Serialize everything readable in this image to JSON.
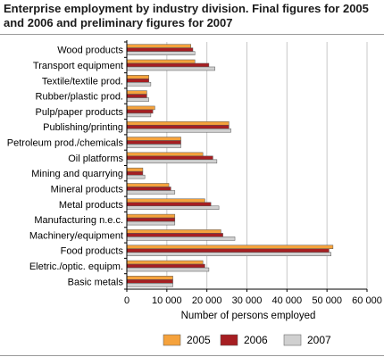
{
  "title": "Enterprise employment by industry division. Final figures for 2005 and 2006 and preliminary figures for 2007",
  "chart_data": {
    "type": "bar",
    "orientation": "horizontal",
    "categories": [
      "Wood products",
      "Transport equipment",
      "Textile/textile prod.",
      "Rubber/plastic prod.",
      "Pulp/paper products",
      "Publishing/printing",
      "Petroleum prod./chemicals",
      "Oil platforms",
      "Mining and quarrying",
      "Mineral products",
      "Metal products",
      "Manufacturing n.e.c.",
      "Machinery/equipment",
      "Food products",
      "Eletric./optic. equipm.",
      "Basic metals"
    ],
    "series": [
      {
        "name": "2005",
        "color": "#f5a23c",
        "values": [
          16000,
          17000,
          5500,
          5000,
          7000,
          25500,
          13500,
          19000,
          4000,
          10500,
          19500,
          12000,
          23500,
          51500,
          19000,
          11500
        ]
      },
      {
        "name": "2006",
        "color": "#a61e22",
        "values": [
          16500,
          20500,
          5500,
          5000,
          6500,
          25500,
          13500,
          21500,
          4000,
          11000,
          21000,
          12000,
          24000,
          50500,
          19500,
          11500
        ]
      },
      {
        "name": "2007",
        "color": "#d0d0d0",
        "values": [
          17000,
          22000,
          6000,
          5500,
          6000,
          26000,
          13500,
          22500,
          4500,
          12000,
          23000,
          12000,
          27000,
          51000,
          20500,
          11500
        ]
      }
    ],
    "xlabel": "Number of persons employed",
    "ylabel": "",
    "xlim": [
      0,
      60000
    ],
    "xticks": [
      0,
      10000,
      20000,
      30000,
      40000,
      50000,
      60000
    ],
    "xtick_labels": [
      "0",
      "10 000",
      "20 000",
      "30 000",
      "40 000",
      "50 000",
      "60 000"
    ],
    "grid": "vertical",
    "legend_position": "bottom"
  }
}
